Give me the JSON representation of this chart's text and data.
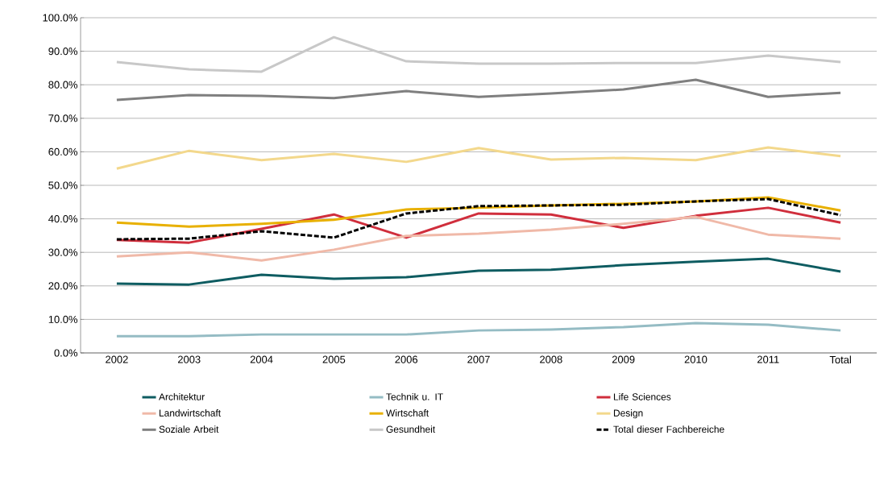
{
  "chart_data": {
    "type": "line",
    "categories": [
      "2002",
      "2003",
      "2004",
      "2005",
      "2006",
      "2007",
      "2008",
      "2009",
      "2010",
      "2011",
      "Total"
    ],
    "ylim": [
      0,
      100
    ],
    "yticks": [
      {
        "value": 0,
        "label": "0.0%"
      },
      {
        "value": 10,
        "label": "10.0%"
      },
      {
        "value": 20,
        "label": "20.0%"
      },
      {
        "value": 30,
        "label": "30.0%"
      },
      {
        "value": 40,
        "label": "40.0%"
      },
      {
        "value": 50,
        "label": "50.0%"
      },
      {
        "value": 60,
        "label": "60.0%"
      },
      {
        "value": 70,
        "label": "70.0%"
      },
      {
        "value": 80,
        "label": "80.0%"
      },
      {
        "value": 90,
        "label": "90.0%"
      },
      {
        "value": 100,
        "label": "100.0%"
      }
    ],
    "grid": "y",
    "legend": "bottom",
    "marker": "none",
    "series": [
      {
        "name": "Architektur",
        "color": "#0e5c61",
        "values": [
          20.7,
          20.4,
          23.3,
          22.1,
          22.6,
          24.5,
          24.8,
          26.2,
          27.2,
          28.1,
          24.3
        ]
      },
      {
        "name": "Technik u. IT",
        "color": "#95bcc4",
        "values": [
          5.0,
          5.0,
          5.5,
          5.5,
          5.5,
          6.7,
          7.0,
          7.7,
          8.9,
          8.4,
          6.7
        ]
      },
      {
        "name": "Life Sciences",
        "color": "#d02e3c",
        "values": [
          33.7,
          32.9,
          37.0,
          41.3,
          34.4,
          41.6,
          41.3,
          37.3,
          40.9,
          43.3,
          38.9
        ]
      },
      {
        "name": "Landwirtschaft",
        "color": "#f0b9a8",
        "values": [
          28.8,
          30.0,
          27.6,
          30.8,
          34.9,
          35.6,
          36.8,
          38.5,
          40.6,
          35.3,
          34.1
        ]
      },
      {
        "name": "Wirtschaft",
        "color": "#e8b000",
        "values": [
          38.9,
          37.7,
          38.5,
          39.7,
          42.8,
          43.3,
          44.0,
          44.5,
          45.2,
          46.4,
          42.5
        ]
      },
      {
        "name": "Design",
        "color": "#f3d88c",
        "values": [
          55.0,
          60.3,
          57.5,
          59.4,
          57.0,
          61.1,
          57.7,
          58.2,
          57.5,
          61.3,
          58.7
        ]
      },
      {
        "name": "Soziale Arbeit",
        "color": "#7f7f7f",
        "values": [
          75.5,
          76.9,
          76.7,
          76.0,
          78.1,
          76.4,
          77.4,
          78.6,
          81.5,
          76.4,
          77.6
        ]
      },
      {
        "name": "Gesundheit",
        "color": "#c8c8c8",
        "values": [
          86.8,
          84.6,
          83.9,
          94.2,
          87.0,
          86.3,
          86.3,
          86.5,
          86.5,
          88.7,
          86.8
        ]
      },
      {
        "name": "Total dieser Fachbereiche",
        "color": "#000000",
        "line_style": "dashed",
        "values": [
          33.9,
          34.1,
          36.3,
          34.4,
          41.6,
          43.8,
          44.0,
          44.2,
          45.2,
          45.9,
          41.1
        ]
      }
    ]
  }
}
